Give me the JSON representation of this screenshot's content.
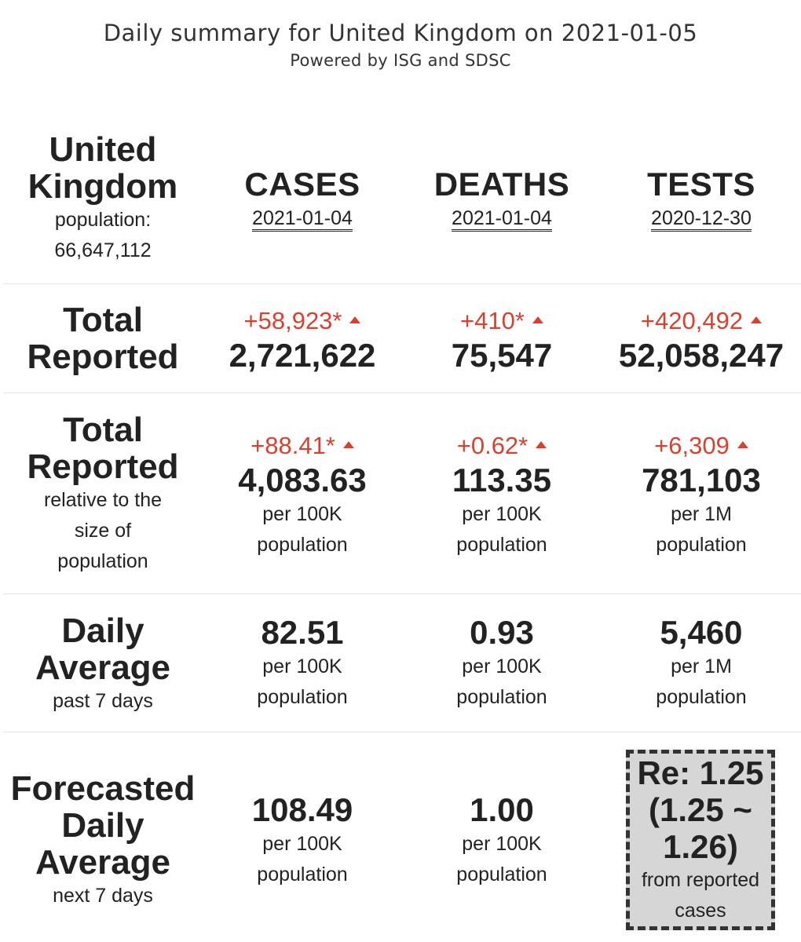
{
  "header": {
    "title": "Daily summary for United Kingdom on 2021-01-05",
    "subtitle": "Powered by ISG and SDSC"
  },
  "region": {
    "name_line1": "United",
    "name_line2": "Kingdom",
    "population_label": "population:",
    "population_value": "66,647,112"
  },
  "columns": [
    {
      "label": "CASES",
      "date": "2021-01-04"
    },
    {
      "label": "DEATHS",
      "date": "2021-01-04"
    },
    {
      "label": "TESTS",
      "date": "2020-12-30"
    }
  ],
  "rows": {
    "total_reported": {
      "label_line1": "Total",
      "label_line2": "Reported",
      "cells": [
        {
          "delta": "+58,923*",
          "value": "2,721,622"
        },
        {
          "delta": "+410*",
          "value": "75,547"
        },
        {
          "delta": "+420,492",
          "value": "52,058,247"
        }
      ]
    },
    "relative": {
      "label_line1": "Total",
      "label_line2": "Reported",
      "sub_line1": "relative to the",
      "sub_line2": "size of",
      "sub_line3": "population",
      "cells": [
        {
          "delta": "+88.41*",
          "value": "4,083.63",
          "unit_line1": "per 100K",
          "unit_line2": "population"
        },
        {
          "delta": "+0.62*",
          "value": "113.35",
          "unit_line1": "per 100K",
          "unit_line2": "population"
        },
        {
          "delta": "+6,309",
          "value": "781,103",
          "unit_line1": "per 1M",
          "unit_line2": "population"
        }
      ]
    },
    "daily_average": {
      "label_line1": "Daily",
      "label_line2": "Average",
      "sub_line1": "past 7 days",
      "cells": [
        {
          "value": "82.51",
          "unit_line1": "per 100K",
          "unit_line2": "population"
        },
        {
          "value": "0.93",
          "unit_line1": "per 100K",
          "unit_line2": "population"
        },
        {
          "value": "5,460",
          "unit_line1": "per 1M",
          "unit_line2": "population"
        }
      ]
    },
    "forecast": {
      "label_line1": "Forecasted",
      "label_line2": "Daily",
      "label_line3": "Average",
      "sub_line1": "next 7 days",
      "cells": [
        {
          "value": "108.49",
          "unit_line1": "per 100K",
          "unit_line2": "population"
        },
        {
          "value": "1.00",
          "unit_line1": "per 100K",
          "unit_line2": "population"
        }
      ],
      "re": {
        "line1": "Re: 1.25",
        "line2": "(1.25 ~",
        "line3": "1.26)",
        "note_line1": "from reported",
        "note_line2": "cases"
      }
    }
  },
  "colors": {
    "delta": "#d9412e",
    "text": "#222222",
    "re_box_bg": "#d6d6d6"
  }
}
